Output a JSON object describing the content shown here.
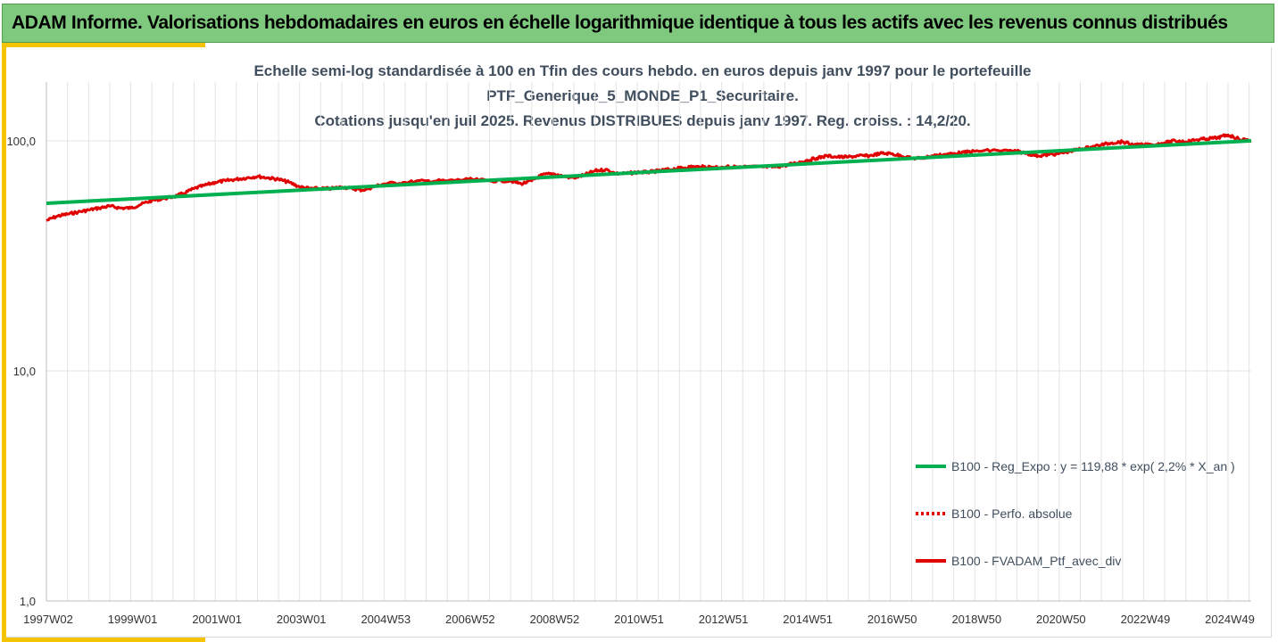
{
  "header": {
    "title": "ADAM Informe. Valorisations hebdomadaires en euros en échelle logarithmique identique à tous les actifs avec les revenus connus distribués"
  },
  "colors": {
    "header_bg": "#7fc97f",
    "accent": "#f5c300",
    "regression": "#00b050",
    "portfolio": "#e00000",
    "grid": "#e3e3e3"
  },
  "chart_data": {
    "type": "line",
    "title_lines": [
      "Echelle semi-log standardisée à 100 en Tfin des cours hebdo.  en euros depuis janv 1997 pour le portefeuille",
      "PTF_Generique_5_MONDE_P1_Securitaire.",
      "Cotations  jusqu'en juil 2025. Revenus DISTRIBUES depuis janv 1997. Reg. croiss. : 14,2/20."
    ],
    "y_scale": "log",
    "ylim": [
      1,
      180
    ],
    "y_ticks": [
      {
        "value": 1,
        "label": "1,0"
      },
      {
        "value": 10,
        "label": "10,0"
      },
      {
        "value": 100,
        "label": "100,0"
      }
    ],
    "xlim": [
      1997.0,
      2025.55
    ],
    "x_ticks": [
      {
        "value": 1997.0,
        "label": "1997W02"
      },
      {
        "value": 1999.0,
        "label": "1999W01"
      },
      {
        "value": 2001.0,
        "label": "2001W01"
      },
      {
        "value": 2003.0,
        "label": "2003W01"
      },
      {
        "value": 2005.0,
        "label": "2004W53"
      },
      {
        "value": 2007.0,
        "label": "2006W52"
      },
      {
        "value": 2009.0,
        "label": "2008W52"
      },
      {
        "value": 2011.0,
        "label": "2010W51"
      },
      {
        "value": 2013.0,
        "label": "2012W51"
      },
      {
        "value": 2015.0,
        "label": "2014W51"
      },
      {
        "value": 2017.0,
        "label": "2016W50"
      },
      {
        "value": 2019.0,
        "label": "2018W50"
      },
      {
        "value": 2021.0,
        "label": "2020W50"
      },
      {
        "value": 2023.0,
        "label": "2022W49"
      },
      {
        "value": 2025.0,
        "label": "2024W49"
      }
    ],
    "grid": true,
    "legend_position": "right",
    "series": [
      {
        "name": "B100 - Reg_Expo : y = 119,88 * exp( 2,2% *  X_an )",
        "style": "line",
        "color": "#00b050",
        "x": [
          1997.0,
          2025.55
        ],
        "y": [
          53.5,
          100.0
        ]
      },
      {
        "name": "B100 - Perfo. absolue",
        "style": "dotted",
        "color": "#e00000",
        "x": [],
        "y": []
      },
      {
        "name": "B100 - FVADAM_Ptf_avec_div",
        "style": "line",
        "color": "#e00000",
        "x": [
          1997.0,
          1997.25,
          1997.5,
          1997.75,
          1998.0,
          1998.25,
          1998.5,
          1998.75,
          1999.0,
          1999.25,
          1999.5,
          1999.75,
          2000.0,
          2000.25,
          2000.5,
          2000.75,
          2001.0,
          2001.25,
          2001.5,
          2001.75,
          2002.0,
          2002.25,
          2002.5,
          2002.75,
          2003.0,
          2003.25,
          2003.5,
          2003.75,
          2004.0,
          2004.25,
          2004.5,
          2004.75,
          2005.0,
          2005.5,
          2006.0,
          2006.5,
          2007.0,
          2007.5,
          2008.0,
          2008.25,
          2008.5,
          2008.75,
          2009.0,
          2009.25,
          2009.5,
          2009.75,
          2010.0,
          2010.25,
          2010.5,
          2010.75,
          2011.0,
          2011.25,
          2011.5,
          2011.75,
          2012.0,
          2012.25,
          2012.5,
          2012.75,
          2013.0,
          2013.5,
          2014.0,
          2014.25,
          2014.5,
          2014.75,
          2015.0,
          2015.25,
          2015.5,
          2015.75,
          2016.0,
          2016.25,
          2016.5,
          2016.75,
          2017.0,
          2017.25,
          2017.5,
          2017.75,
          2018.0,
          2018.25,
          2018.5,
          2018.75,
          2019.0,
          2019.5,
          2020.0,
          2020.25,
          2020.5,
          2020.75,
          2021.0,
          2021.25,
          2021.5,
          2021.75,
          2022.0,
          2022.25,
          2022.5,
          2022.75,
          2023.0,
          2023.25,
          2023.5,
          2023.75,
          2024.0,
          2024.25,
          2024.5,
          2024.75,
          2025.0,
          2025.25,
          2025.55
        ],
        "y": [
          45,
          47,
          48,
          49,
          50,
          51,
          52,
          51,
          51,
          53,
          55,
          56,
          57,
          59,
          62,
          64,
          66,
          67,
          68,
          69,
          70,
          69,
          68,
          66,
          63,
          62,
          62,
          62,
          63,
          62,
          61,
          63,
          65,
          66,
          67,
          67,
          68,
          67,
          67,
          65,
          67,
          71,
          72,
          70,
          69,
          71,
          74,
          75,
          72,
          72,
          73,
          73,
          74,
          75,
          76,
          77,
          77,
          77,
          77,
          77,
          77,
          77,
          78,
          80,
          82,
          84,
          86,
          85,
          85,
          86,
          86,
          88,
          88,
          86,
          84,
          84,
          86,
          87,
          88,
          89,
          90,
          91,
          90,
          88,
          86,
          87,
          88,
          90,
          92,
          94,
          96,
          98,
          99,
          96,
          96,
          96,
          98,
          100,
          99,
          101,
          102,
          103,
          106,
          102,
          100
        ]
      }
    ]
  }
}
